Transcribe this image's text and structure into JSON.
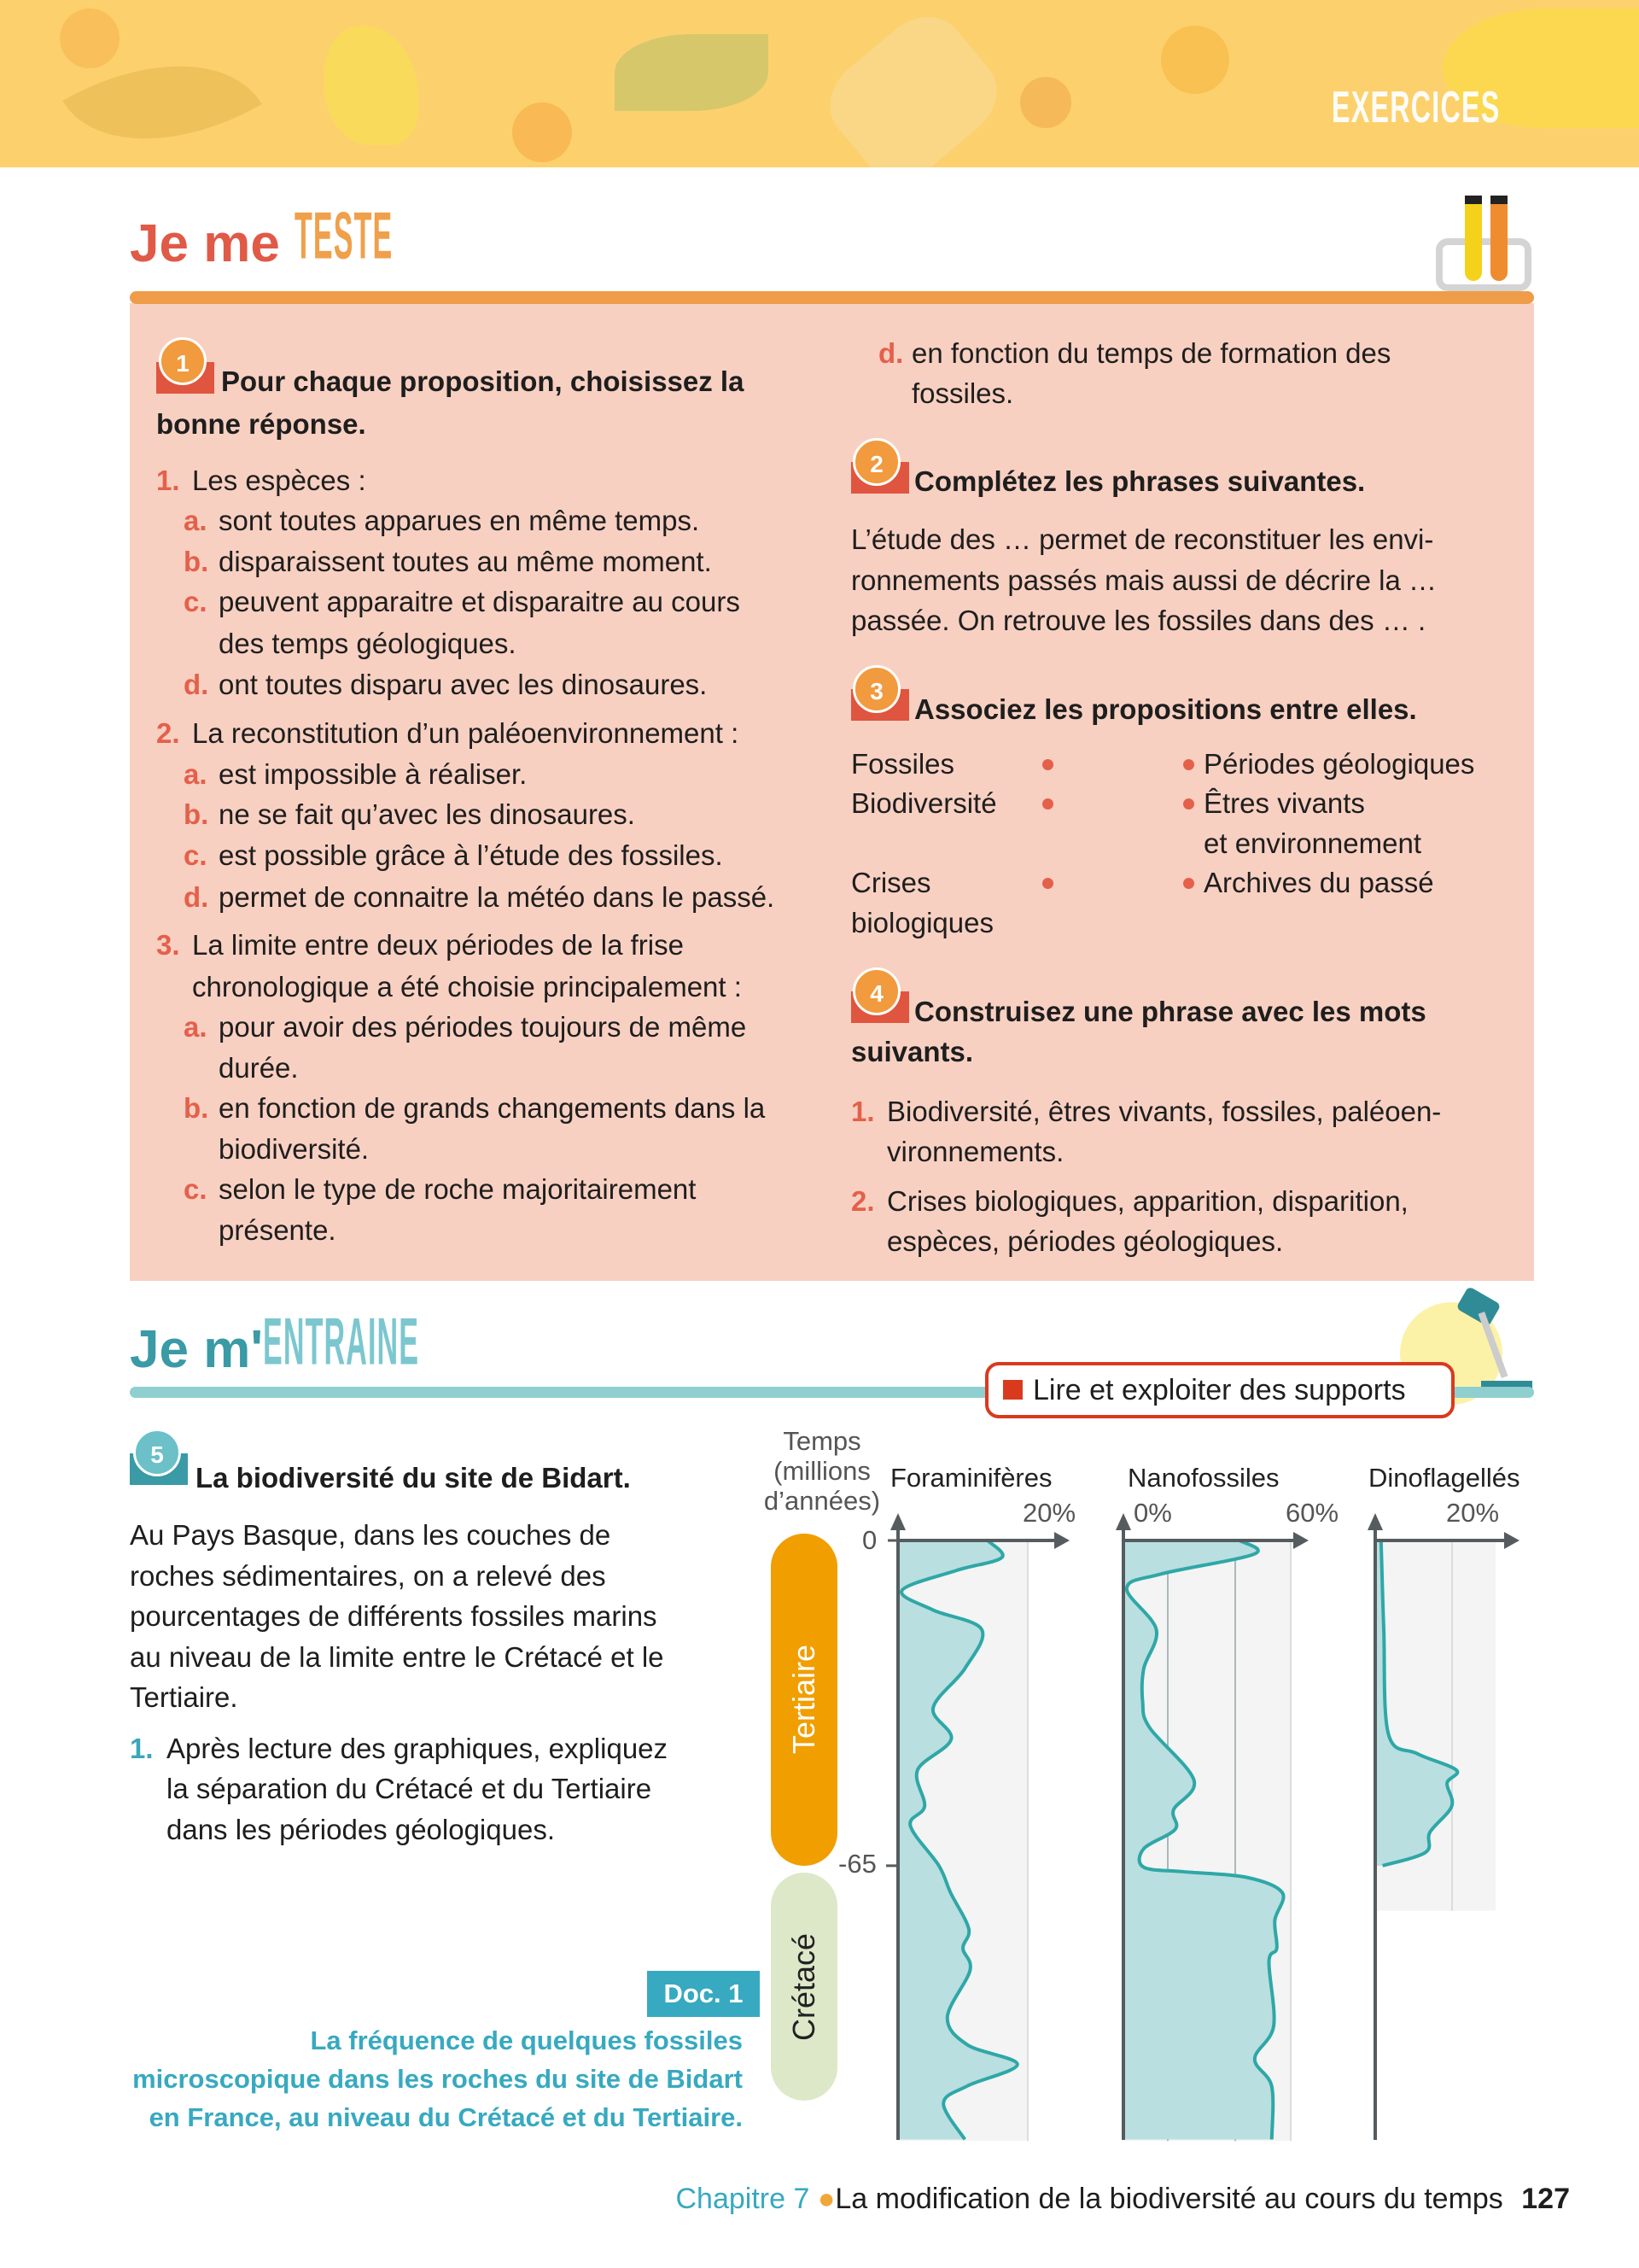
{
  "header": {
    "banner_title": "EXERCICES"
  },
  "teste": {
    "title_a": "Je me ",
    "title_b": "TESTE",
    "q1": {
      "number": "1",
      "title_lines": [
        "Pour chaque proposition, choisissez la",
        "bonne réponse."
      ],
      "items": [
        {
          "num": "1.",
          "lines": [
            "Les espèces :"
          ],
          "options": [
            {
              "letter": "a.",
              "lines": [
                "sont toutes apparues en même temps."
              ]
            },
            {
              "letter": "b.",
              "lines": [
                "disparaissent toutes au même moment."
              ]
            },
            {
              "letter": "c.",
              "lines": [
                "peuvent apparaitre et disparaitre au cours",
                "des temps géologiques."
              ]
            },
            {
              "letter": "d.",
              "lines": [
                "ont toutes disparu avec les dinosaures."
              ]
            }
          ]
        },
        {
          "num": "2.",
          "lines": [
            "La reconstitution d’un paléoenvironnement :"
          ],
          "options": [
            {
              "letter": "a.",
              "lines": [
                "est impossible à réaliser."
              ]
            },
            {
              "letter": "b.",
              "lines": [
                "ne se fait qu’avec les dinosaures."
              ]
            },
            {
              "letter": "c.",
              "lines": [
                "est possible grâce à l’étude des fossiles."
              ]
            },
            {
              "letter": "d.",
              "lines": [
                "permet de connaitre la météo dans le passé."
              ]
            }
          ]
        },
        {
          "num": "3.",
          "lines": [
            "La limite entre deux périodes de la frise",
            "chronologique a été choisie principalement :"
          ],
          "options": [
            {
              "letter": "a.",
              "lines": [
                "pour avoir des périodes toujours de même",
                "durée."
              ]
            },
            {
              "letter": "b.",
              "lines": [
                "en fonction de grands changements dans la",
                "biodiversité."
              ]
            },
            {
              "letter": "c.",
              "lines": [
                "selon le type de roche majoritairement",
                "présente."
              ]
            },
            {
              "letter": "d.",
              "lines": [
                "en fonction du temps de formation des",
                "fossiles."
              ]
            }
          ]
        }
      ]
    },
    "q2": {
      "number": "2",
      "title": "Complétez les phrases suivantes.",
      "lines": [
        "L’étude des … permet de reconstituer les envi-",
        "ronnements passés mais aussi de décrire la …",
        "passée. On retrouve les fossiles dans des … ."
      ]
    },
    "q3": {
      "number": "3",
      "title": "Associez les propositions entre elles.",
      "left": [
        [
          "Fossiles"
        ],
        [
          "Biodiversité"
        ],
        [
          "Crises",
          "biologiques"
        ]
      ],
      "right": [
        [
          "Périodes géologiques"
        ],
        [
          "Êtres vivants",
          "et environnement"
        ],
        [
          "Archives du passé"
        ]
      ]
    },
    "q4": {
      "number": "4",
      "title_lines": [
        "Construisez une phrase avec les mots",
        "suivants."
      ],
      "items": [
        {
          "num": "1.",
          "lines": [
            "Biodiversité, êtres vivants, fossiles, paléoen-",
            "vironnements."
          ]
        },
        {
          "num": "2.",
          "lines": [
            "Crises biologiques, apparition, disparition,",
            "espèces, périodes géologiques."
          ]
        }
      ]
    }
  },
  "entraine": {
    "title_a": "Je m'",
    "title_b": "ENTRAINE",
    "skill_badge": "Lire et exploiter des supports",
    "q5": {
      "number": "5",
      "title": "La biodiversité du site de Bidart.",
      "intro_lines": [
        "Au Pays Basque, dans les couches de",
        "roches sédimentaires, on a relevé des",
        "pourcentages de différents fossiles marins",
        "au niveau de la limite entre le Crétacé et le",
        "Tertiaire."
      ],
      "task": {
        "num": "1.",
        "lines": [
          "Après lecture des graphiques, expliquez",
          "la séparation du Crétacé et du Tertiaire",
          "dans les périodes géologiques."
        ]
      }
    },
    "doc": {
      "label": "Doc. 1",
      "caption_lines": [
        "La fréquence de quelques fossiles",
        "microscopique dans les roches du site de Bidart",
        "en France, au niveau du Crétacé et du Tertiaire."
      ]
    }
  },
  "chart_data": {
    "type": "area",
    "ylabel_lines": [
      "Temps",
      "(millions",
      "d’années)"
    ],
    "y_ticks": [
      "0",
      "-65"
    ],
    "ylim": [
      -120,
      0
    ],
    "periods": [
      {
        "name": "Tertiaire",
        "from": 0,
        "to": -65,
        "color": "#f19e00"
      },
      {
        "name": "Crétacé",
        "from": -65,
        "to": -112,
        "color": "#dde8c8"
      }
    ],
    "series": [
      {
        "name": "Foraminifères",
        "x_tick_labels": [
          "20%"
        ],
        "xlim": [
          0,
          20
        ],
        "points": [
          [
            0,
            13.8
          ],
          [
            -3.4,
            16
          ],
          [
            -6,
            9
          ],
          [
            -10,
            0.6
          ],
          [
            -13.9,
            5.4
          ],
          [
            -17.8,
            12.9
          ],
          [
            -25.6,
            10.3
          ],
          [
            -33.5,
            5.4
          ],
          [
            -39.7,
            8.2
          ],
          [
            -45.9,
            3
          ],
          [
            -53.1,
            4.1
          ],
          [
            -57,
            1.9
          ],
          [
            -65,
            6.3
          ],
          [
            -70.4,
            8.1
          ],
          [
            -77.6,
            10.9
          ],
          [
            -81.5,
            10
          ],
          [
            -85.9,
            11.1
          ],
          [
            -95.3,
            7.6
          ],
          [
            -100.8,
            10.7
          ],
          [
            -104.7,
            18.4
          ],
          [
            -109,
            10.7
          ],
          [
            -112.5,
            7
          ],
          [
            -119.7,
            10.3
          ]
        ]
      },
      {
        "name": "Nanofossiles",
        "x_tick_labels": [
          "0%",
          "60%"
        ],
        "xlim": [
          0,
          60
        ],
        "points": [
          [
            0,
            41.6
          ],
          [
            -2.7,
            47
          ],
          [
            -6.7,
            13.5
          ],
          [
            -9.6,
            1.2
          ],
          [
            -17.8,
            11.8
          ],
          [
            -25.6,
            7.3
          ],
          [
            -32.2,
            6.9
          ],
          [
            -37.4,
            9.4
          ],
          [
            -47.9,
            25.3
          ],
          [
            -53.8,
            18
          ],
          [
            -57.7,
            18.6
          ],
          [
            -61.6,
            7.3
          ],
          [
            -65.3,
            7.3
          ],
          [
            -66.2,
            21.6
          ],
          [
            -67.3,
            44
          ],
          [
            -70.4,
            57
          ],
          [
            -75.9,
            54.3
          ],
          [
            -81.5,
            55
          ],
          [
            -84.2,
            52.2
          ],
          [
            -97,
            53.9
          ],
          [
            -103.6,
            47.1
          ],
          [
            -109.1,
            53.2
          ],
          [
            -119.7,
            53.2
          ]
        ]
      },
      {
        "name": "Dinoflagellés",
        "x_tick_labels": [
          "20%"
        ],
        "xlim": [
          0,
          31
        ],
        "points": [
          [
            0,
            1.5
          ],
          [
            -17.8,
            2.2
          ],
          [
            -38.7,
            3.4
          ],
          [
            -42.6,
            10.8
          ],
          [
            -45.9,
            20.9
          ],
          [
            -48.5,
            18.5
          ],
          [
            -53.1,
            19.7
          ],
          [
            -58.3,
            14.1
          ],
          [
            -62.3,
            13
          ],
          [
            -65,
            1.9
          ]
        ]
      }
    ],
    "fill_color": "#b9dfe0",
    "line_color": "#2fa7a7"
  },
  "footer": {
    "chapter": "Chapitre 7",
    "title": "La modification de la biodiversité au cours du temps",
    "page": "127"
  }
}
